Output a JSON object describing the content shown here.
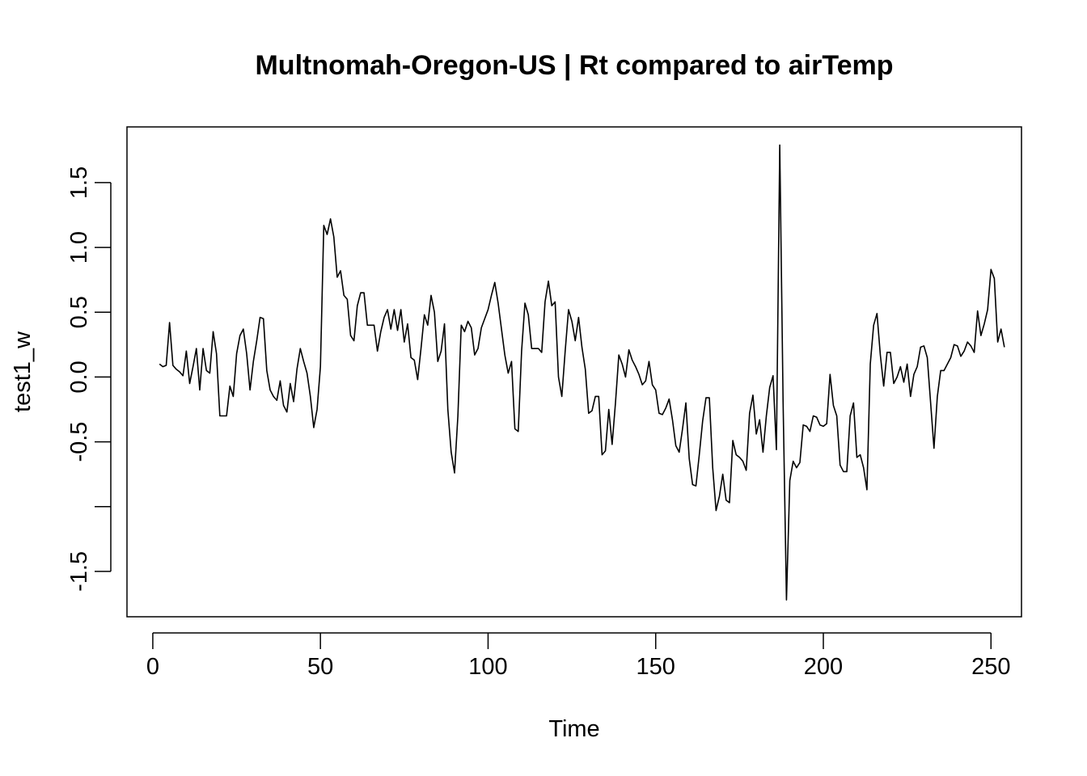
{
  "chart_data": {
    "type": "line",
    "title": "Multnomah-Oregon-US | Rt compared to airTemp",
    "xlabel": "Time",
    "ylabel": "test1_w",
    "xlim": [
      -7.7,
      259.1
    ],
    "ylim": [
      -1.85,
      1.93
    ],
    "x_ticks": [
      0,
      50,
      100,
      150,
      200,
      250
    ],
    "x_tick_labels": [
      "0",
      "50",
      "100",
      "150",
      "200",
      "250"
    ],
    "y_ticks": [
      -1.5,
      -1.0,
      -0.5,
      0.0,
      0.5,
      1.0,
      1.5
    ],
    "y_tick_labels": [
      "-1.5",
      "",
      "-0.5",
      "0.0",
      "0.5",
      "1.0",
      "1.5"
    ],
    "grid": false,
    "legend": "none",
    "line_color": "#000000",
    "series": [
      {
        "x_start": 2,
        "values": [
          0.1,
          0.08,
          0.09,
          0.42,
          0.09,
          0.06,
          0.04,
          0.01,
          0.2,
          -0.05,
          0.08,
          0.22,
          -0.1,
          0.22,
          0.05,
          0.03,
          0.35,
          0.18,
          -0.3,
          -0.3,
          -0.3,
          -0.07,
          -0.15,
          0.18,
          0.32,
          0.37,
          0.18,
          -0.1,
          0.12,
          0.28,
          0.46,
          0.45,
          0.05,
          -0.1,
          -0.15,
          -0.18,
          -0.03,
          -0.22,
          -0.27,
          -0.05,
          -0.19,
          0.06,
          0.22,
          0.12,
          0.03,
          -0.15,
          -0.39,
          -0.25,
          0.08,
          1.17,
          1.1,
          1.22,
          1.08,
          0.77,
          0.82,
          0.63,
          0.6,
          0.32,
          0.28,
          0.55,
          0.65,
          0.65,
          0.4,
          0.4,
          0.4,
          0.2,
          0.35,
          0.46,
          0.52,
          0.37,
          0.52,
          0.36,
          0.52,
          0.27,
          0.41,
          0.15,
          0.13,
          -0.02,
          0.22,
          0.48,
          0.4,
          0.63,
          0.5,
          0.12,
          0.2,
          0.41,
          -0.25,
          -0.58,
          -0.74,
          -0.3,
          0.4,
          0.35,
          0.43,
          0.38,
          0.17,
          0.22,
          0.38,
          0.45,
          0.52,
          0.63,
          0.73,
          0.57,
          0.37,
          0.17,
          0.03,
          0.12,
          -0.4,
          -0.42,
          0.2,
          0.57,
          0.48,
          0.22,
          0.22,
          0.22,
          0.19,
          0.58,
          0.74,
          0.55,
          0.58,
          0.0,
          -0.15,
          0.2,
          0.52,
          0.43,
          0.28,
          0.46,
          0.23,
          0.06,
          -0.28,
          -0.26,
          -0.15,
          -0.15,
          -0.6,
          -0.57,
          -0.25,
          -0.52,
          -0.2,
          0.17,
          0.1,
          0.0,
          0.21,
          0.13,
          0.08,
          0.02,
          -0.06,
          -0.03,
          0.12,
          -0.06,
          -0.1,
          -0.28,
          -0.29,
          -0.24,
          -0.17,
          -0.33,
          -0.53,
          -0.58,
          -0.4,
          -0.2,
          -0.63,
          -0.83,
          -0.84,
          -0.6,
          -0.34,
          -0.16,
          -0.16,
          -0.7,
          -1.03,
          -0.92,
          -0.75,
          -0.95,
          -0.97,
          -0.49,
          -0.6,
          -0.62,
          -0.65,
          -0.72,
          -0.28,
          -0.14,
          -0.44,
          -0.33,
          -0.58,
          -0.3,
          -0.08,
          0.01,
          -0.56,
          1.79,
          -0.2,
          -1.72,
          -0.8,
          -0.65,
          -0.7,
          -0.66,
          -0.37,
          -0.38,
          -0.42,
          -0.3,
          -0.31,
          -0.37,
          -0.38,
          -0.36,
          0.02,
          -0.22,
          -0.3,
          -0.68,
          -0.73,
          -0.73,
          -0.3,
          -0.2,
          -0.62,
          -0.6,
          -0.7,
          -0.87,
          0.1,
          0.4,
          0.49,
          0.17,
          -0.07,
          0.19,
          0.19,
          -0.05,
          0.0,
          0.08,
          -0.04,
          0.1,
          -0.15,
          0.02,
          0.08,
          0.23,
          0.24,
          0.15,
          -0.2,
          -0.55,
          -0.15,
          0.05,
          0.05,
          0.1,
          0.15,
          0.25,
          0.24,
          0.16,
          0.2,
          0.27,
          0.24,
          0.19,
          0.51,
          0.32,
          0.41,
          0.52,
          0.83,
          0.76,
          0.27,
          0.37,
          0.23
        ]
      }
    ]
  }
}
